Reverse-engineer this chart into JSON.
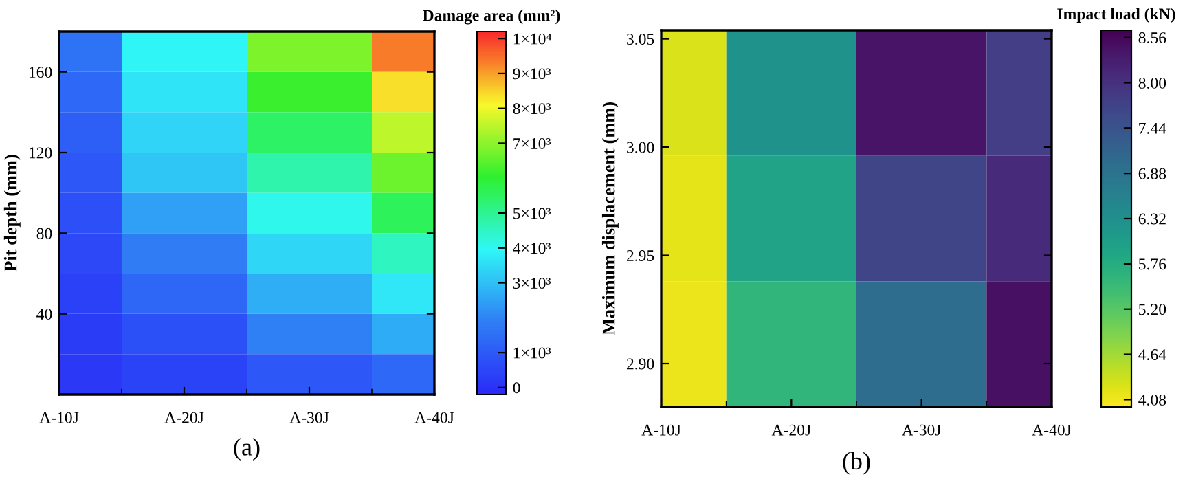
{
  "chart_data": [
    {
      "type": "heatmap",
      "categories": [
        "A-10J",
        "A-20J",
        "A-30J",
        "A-40J"
      ],
      "ylabel": "Pit depth (mm)",
      "clabel": "Damage area (mm²)",
      "ylim": [
        0,
        180
      ],
      "yticks": [
        40,
        80,
        120,
        160
      ],
      "cells": [
        [
          1590,
          3910,
          6860,
          9350
        ],
        [
          1320,
          3640,
          6170,
          8370
        ],
        [
          1100,
          3370,
          5460,
          7500
        ],
        [
          900,
          3110,
          4750,
          6680
        ],
        [
          720,
          2480,
          4080,
          5600
        ],
        [
          550,
          1820,
          3410,
          4520
        ],
        [
          400,
          1270,
          2700,
          3670
        ],
        [
          280,
          770,
          1900,
          2670
        ],
        [
          200,
          420,
          900,
          1320
        ]
      ],
      "clim": [
        -200,
        10200
      ],
      "cticks": [
        0,
        {
          "value": 1000,
          "label": "1×10³"
        },
        {
          "value": 3000,
          "label": "3×10³"
        },
        {
          "value": 4000,
          "label": "4×10³"
        },
        {
          "value": 5000,
          "label": "5×10³"
        },
        {
          "value": 7000,
          "label": "7×10³"
        },
        {
          "value": 8000,
          "label": "8×10³"
        },
        {
          "value": 9000,
          "label": "9×10³"
        },
        {
          "value": 10000,
          "label": "1×10⁴"
        }
      ],
      "annotations": [
        "(a)"
      ]
    },
    {
      "type": "heatmap",
      "categories": [
        "A-10J",
        "A-20J",
        "A-30J",
        "A-40J"
      ],
      "ylabel": "Maximum displacement (mm)",
      "clabel": "Impact load (kN)",
      "ylim": [
        2.88,
        3.054
      ],
      "yticks": [
        {
          "value": 2.9,
          "label": "2.90"
        },
        2.95,
        {
          "value": 3.0,
          "label": "3.00"
        },
        3.05
      ],
      "cells": [
        [
          4.25,
          6.3,
          8.4,
          7.8
        ],
        [
          4.18,
          5.95,
          7.7,
          8.1
        ],
        [
          4.12,
          5.6,
          7.0,
          8.45
        ]
      ],
      "clim": [
        3.99,
        8.65
      ],
      "cticks": [
        4.08,
        4.64,
        {
          "value": 5.2,
          "label": "5.20"
        },
        5.76,
        6.32,
        6.88,
        7.44,
        {
          "value": 8.0,
          "label": "8.00"
        },
        8.56
      ],
      "annotations": [
        "(b)"
      ]
    }
  ]
}
